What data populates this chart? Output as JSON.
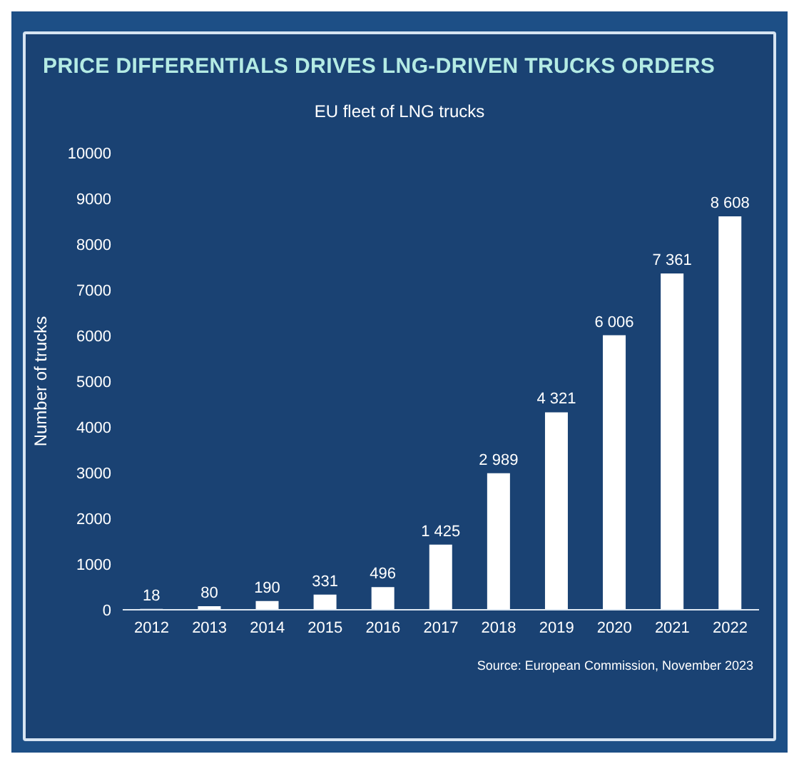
{
  "chart_data": {
    "type": "bar",
    "title": "PRICE DIFFERENTIALS DRIVES LNG-DRIVEN TRUCKS ORDERS",
    "subtitle": "EU fleet of LNG trucks",
    "ylabel": "Number of trucks",
    "categories": [
      "2012",
      "2013",
      "2014",
      "2015",
      "2016",
      "2017",
      "2018",
      "2019",
      "2020",
      "2021",
      "2022"
    ],
    "values": [
      18,
      80,
      190,
      331,
      496,
      1425,
      2989,
      4321,
      6006,
      7361,
      8608
    ],
    "value_labels": [
      "18",
      "80",
      "190",
      "331",
      "496",
      "1 425",
      "2 989",
      "4 321",
      "6 006",
      "7 361",
      "8 608"
    ],
    "color": "#ffffff",
    "ylim": [
      0,
      10000
    ],
    "yticks": [
      0,
      1000,
      2000,
      3000,
      4000,
      5000,
      6000,
      7000,
      8000,
      9000,
      10000
    ],
    "annotations": [
      "Source: European Commission, November 2023"
    ]
  }
}
